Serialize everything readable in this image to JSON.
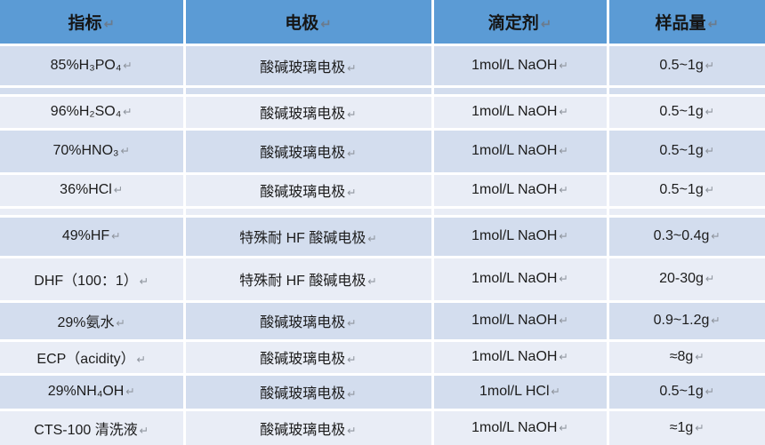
{
  "table": {
    "return_mark": "↵",
    "columns": [
      {
        "label": "指标"
      },
      {
        "label": "电极"
      },
      {
        "label": "滴定剂"
      },
      {
        "label": "样品量"
      }
    ],
    "rows": [
      {
        "type": "data",
        "band": "dark",
        "indicator": "85%H₃PO₄",
        "electrode": "酸碱玻璃电极",
        "titrant": "1mol/L NaOH",
        "amount": "0.5~1g"
      },
      {
        "type": "spacer",
        "band": "dark"
      },
      {
        "type": "data",
        "band": "light",
        "indicator": "96%H₂SO₄",
        "electrode": "酸碱玻璃电极",
        "titrant": "1mol/L NaOH",
        "amount": "0.5~1g"
      },
      {
        "type": "data",
        "band": "dark",
        "indicator": "70%HNO₃",
        "electrode": "酸碱玻璃电极",
        "titrant": "1mol/L NaOH",
        "amount": "0.5~1g"
      },
      {
        "type": "data",
        "band": "light",
        "indicator": "36%HCl",
        "electrode": "酸碱玻璃电极",
        "titrant": "1mol/L NaOH",
        "amount": "0.5~1g"
      },
      {
        "type": "spacer",
        "band": "light"
      },
      {
        "type": "data",
        "band": "dark",
        "indicator": "49%HF",
        "electrode": "特殊耐 HF 酸碱电极",
        "titrant": "1mol/L NaOH",
        "amount": "0.3~0.4g"
      },
      {
        "type": "data",
        "band": "light",
        "indicator": "DHF（100：1）",
        "electrode": "特殊耐 HF 酸碱电极",
        "titrant": "1mol/L NaOH",
        "amount": "20-30g"
      },
      {
        "type": "data",
        "band": "dark",
        "indicator": "29%氨水",
        "electrode": "酸碱玻璃电极",
        "titrant": "1mol/L NaOH",
        "amount": "0.9~1.2g"
      },
      {
        "type": "data",
        "band": "light",
        "indicator": "ECP（acidity）",
        "electrode": "酸碱玻璃电极",
        "titrant": "1mol/L NaOH",
        "amount": "≈8g"
      },
      {
        "type": "data",
        "band": "dark",
        "indicator": "29%NH₄OH",
        "electrode": "酸碱玻璃电极",
        "titrant": "1mol/L HCl",
        "amount": "0.5~1g"
      },
      {
        "type": "data",
        "band": "light",
        "indicator": "CTS-100 清洗液",
        "electrode": "酸碱玻璃电极",
        "titrant": "1mol/L NaOH",
        "amount": "≈1g"
      }
    ],
    "colors": {
      "header_bg": "#5b9bd5",
      "band_dark": "#d3ddee",
      "band_light": "#e9edf6",
      "border": "#ffffff",
      "text": "#1c1c1c",
      "return_mark": "#8f959e"
    }
  }
}
